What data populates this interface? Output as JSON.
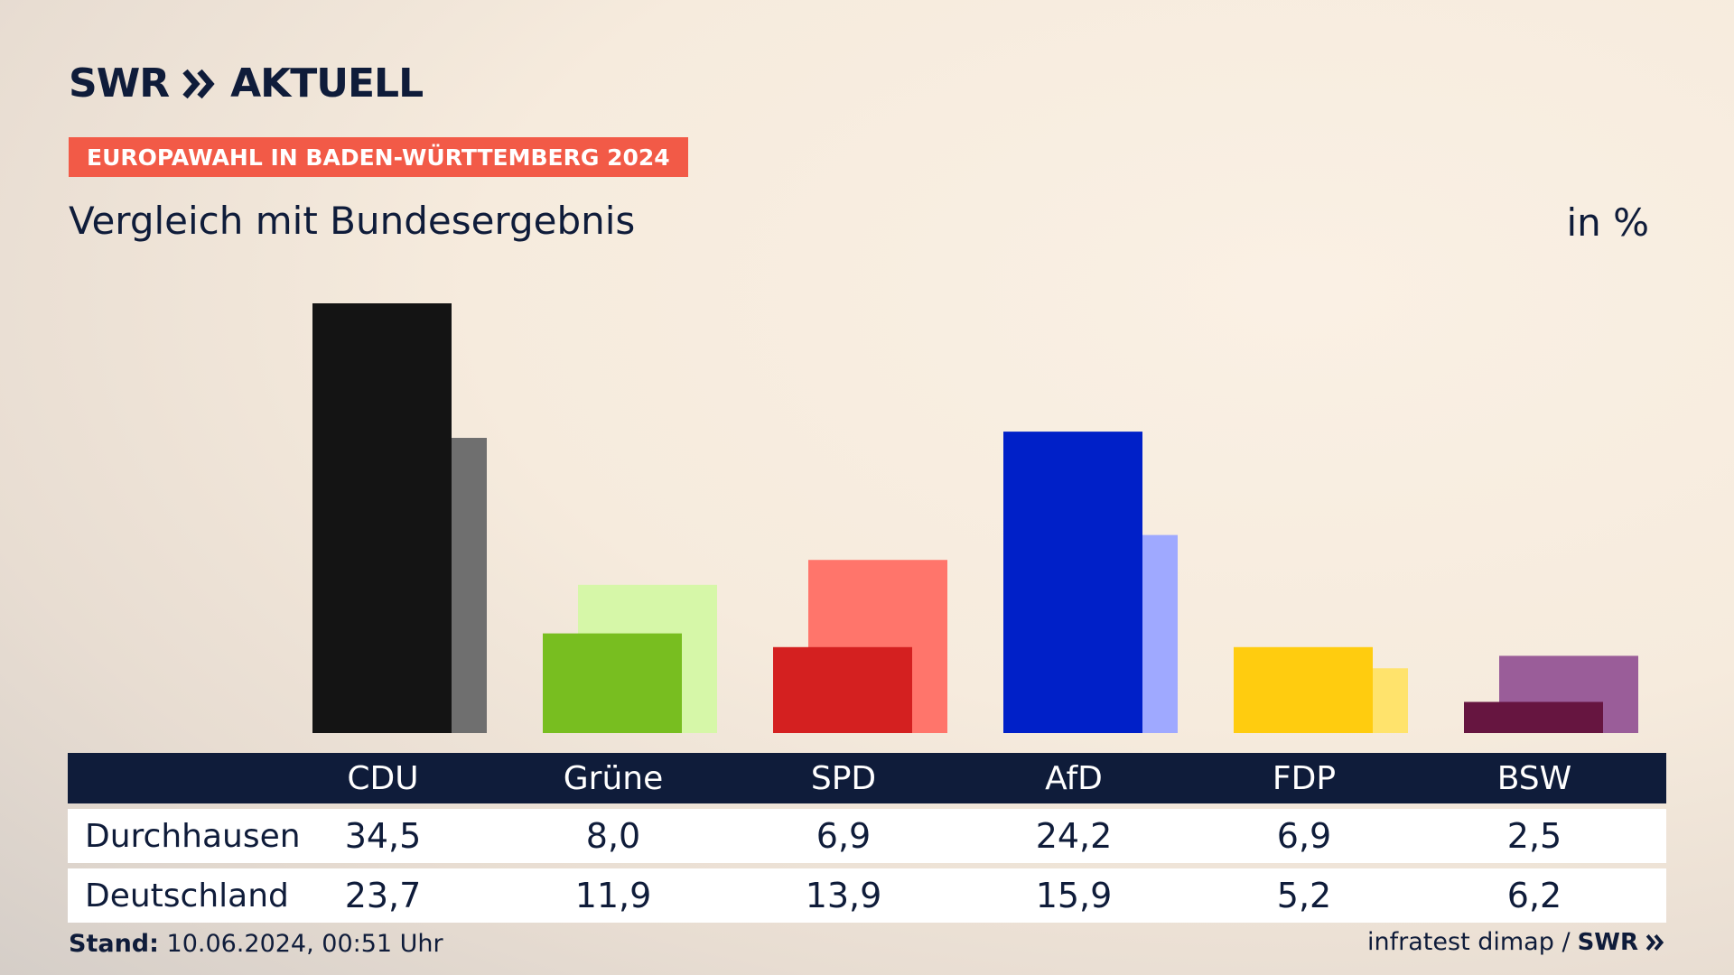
{
  "header": {
    "logo_text": "SWR",
    "logo_text_2": "AKTUELL",
    "badge": "EUROPAWAHL IN BADEN-WÜRTTEMBERG 2024",
    "subtitle": "Vergleich mit Bundesergebnis",
    "unit": "in %"
  },
  "colors": {
    "badge": "#f25a47",
    "navy": "#0f1c3a"
  },
  "chart_data": {
    "type": "bar",
    "categories": [
      "CDU",
      "Grüne",
      "SPD",
      "AfD",
      "FDP",
      "BSW"
    ],
    "series": [
      {
        "name": "Durchhausen",
        "values": [
          34.5,
          8.0,
          6.9,
          24.2,
          6.9,
          2.5
        ]
      },
      {
        "name": "Deutschland",
        "values": [
          23.7,
          11.9,
          13.9,
          15.9,
          5.2,
          6.2
        ]
      }
    ],
    "primary_colors": [
      "#141414",
      "#78be20",
      "#d42020",
      "#0020c8",
      "#ffcc0f",
      "#661540"
    ],
    "secondary_colors": [
      "#6f6f6f",
      "#d6f7a8",
      "#ff756b",
      "#9fa9ff",
      "#ffe36c",
      "#9a5d99"
    ],
    "ylim": [
      0,
      34.5
    ],
    "grid": false,
    "legend": "table-below"
  },
  "table": {
    "rows": [
      {
        "label": "Durchhausen",
        "values": [
          "34,5",
          "8,0",
          "6,9",
          "24,2",
          "6,9",
          "2,5"
        ]
      },
      {
        "label": "Deutschland",
        "values": [
          "23,7",
          "11,9",
          "13,9",
          "15,9",
          "5,2",
          "6,2"
        ]
      }
    ]
  },
  "footer": {
    "stand_label": "Stand:",
    "stand_value": "10.06.2024, 00:51 Uhr",
    "source": "infratest dimap /",
    "source_logo": "SWR"
  }
}
